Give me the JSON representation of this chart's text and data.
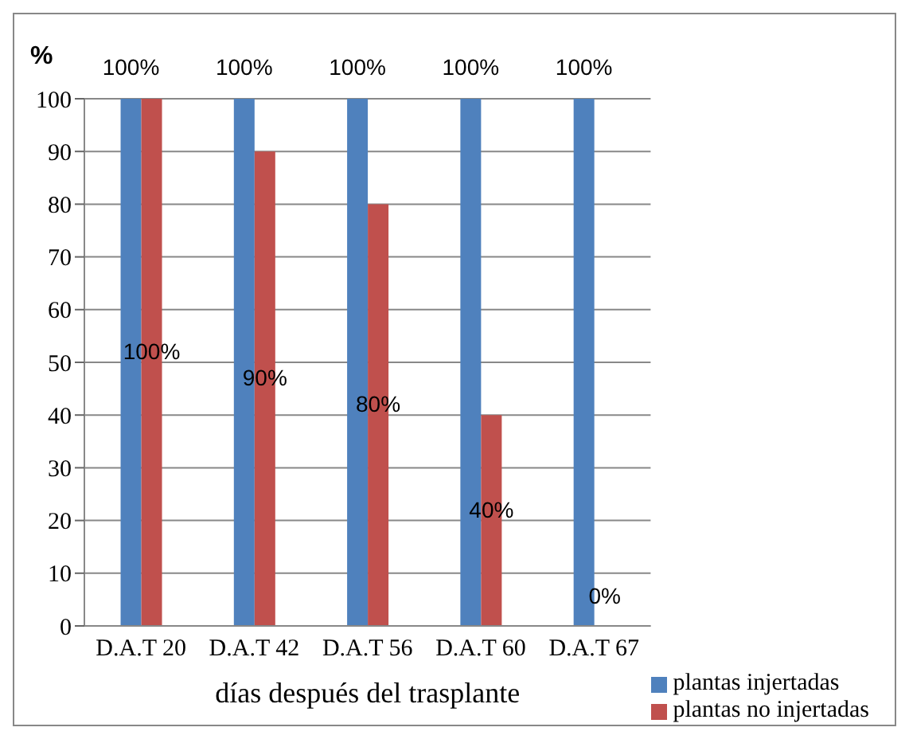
{
  "chart_data": {
    "type": "bar",
    "ylabel": "%",
    "xlabel": "días después del trasplante",
    "categories": [
      "D.A.T 20",
      "D.A.T 42",
      "D.A.T 56",
      "D.A.T 60",
      "D.A.T 67"
    ],
    "series": [
      {
        "name": "plantas injertadas",
        "color": "#4f81bd",
        "values": [
          100,
          100,
          100,
          100,
          100
        ],
        "value_labels": [
          "100%",
          "100%",
          "100%",
          "100%",
          "100%"
        ]
      },
      {
        "name": "plantas no injertadas",
        "color": "#c0504d",
        "values": [
          100,
          90,
          80,
          40,
          0
        ],
        "value_labels": [
          "100%",
          "90%",
          "80%",
          "40%",
          "0%"
        ]
      }
    ],
    "ylim": [
      0,
      100
    ],
    "yticks": [
      0,
      10,
      20,
      30,
      40,
      50,
      60,
      70,
      80,
      90,
      100
    ],
    "grid": "y",
    "legend": "bottom right"
  }
}
